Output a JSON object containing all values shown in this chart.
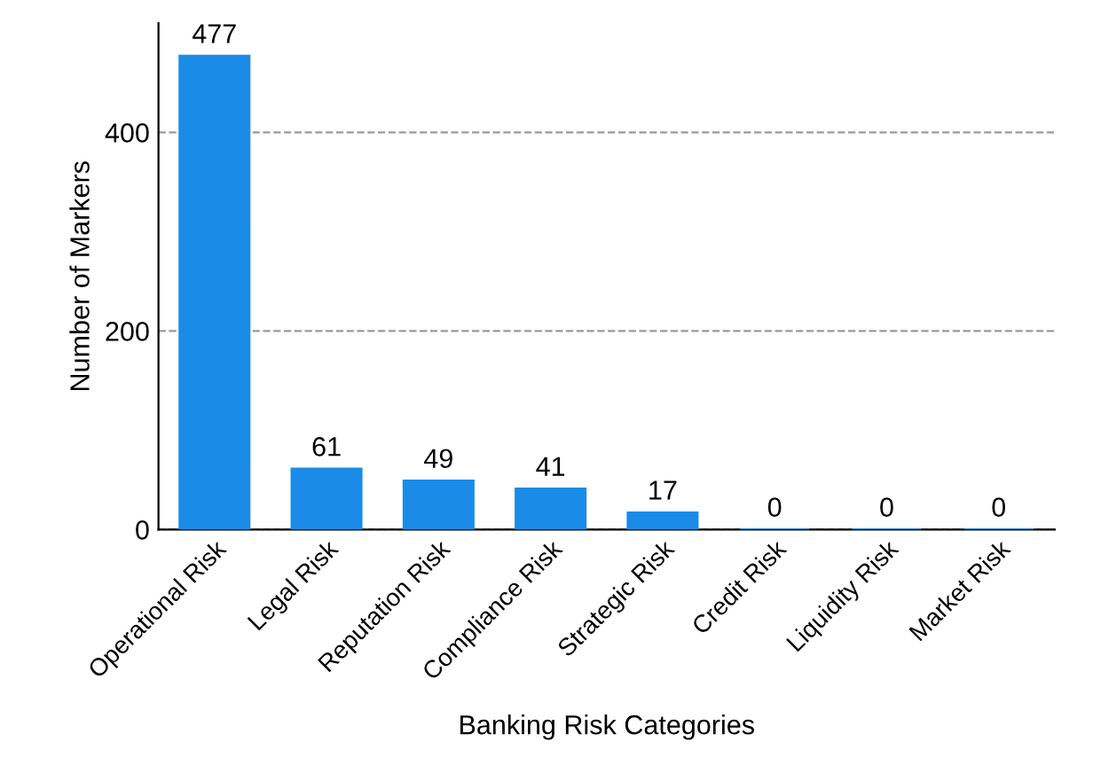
{
  "chart_data": {
    "type": "bar",
    "xlabel": "Banking Risk Categories",
    "ylabel": "Number of Markers",
    "categories": [
      "Operational Risk",
      "Legal Risk",
      "Reputation Risk",
      "Compliance Risk",
      "Strategic Risk",
      "Credit Risk",
      "Liquidity Risk",
      "Market Risk"
    ],
    "values": [
      477,
      61,
      49,
      41,
      17,
      0,
      0,
      0
    ],
    "color": "#1a8ce8",
    "ylim": [
      0,
      510
    ],
    "yticks": [
      0,
      200,
      400
    ],
    "grid": "y",
    "data_labels": true
  }
}
